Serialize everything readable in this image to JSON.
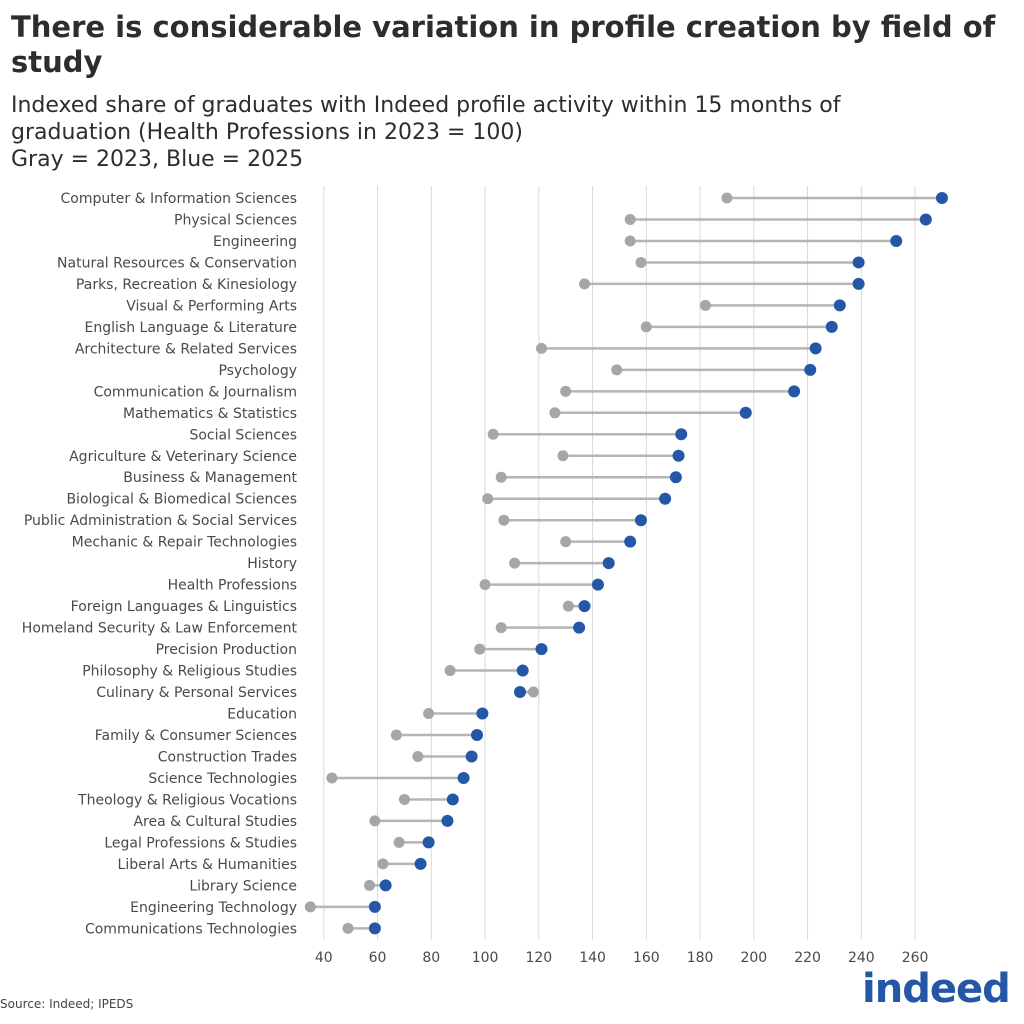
{
  "header": {
    "title": "There is considerable variation in profile creation by field of study",
    "subtitle_line1": "Indexed share of graduates with Indeed profile activity within 15 months of",
    "subtitle_line2": "graduation (Health Professions in 2023 = 100)",
    "subtitle_line3": "Gray = 2023, Blue = 2025"
  },
  "footer": {
    "source": "Source: Indeed; IPEDS",
    "logo_text": "indeed"
  },
  "colors": {
    "y2023": "#a6a6a6",
    "y2025": "#2557a7",
    "connector": "#b5b5b5",
    "grid": "#d9d9d9",
    "text": "#4a4a4a"
  },
  "chart_data": {
    "type": "dumbbell",
    "x_ticks": [
      40,
      60,
      80,
      100,
      120,
      140,
      160,
      180,
      200,
      220,
      240,
      260
    ],
    "xlim": [
      33,
      273
    ],
    "grid": true,
    "series": [
      {
        "name": "2023",
        "color": "gray"
      },
      {
        "name": "2025",
        "color": "blue"
      }
    ],
    "categories": [
      "Computer & Information Sciences",
      "Physical Sciences",
      "Engineering",
      "Natural Resources & Conservation",
      "Parks, Recreation & Kinesiology",
      "Visual & Performing Arts",
      "English Language & Literature",
      "Architecture & Related Services",
      "Psychology",
      "Communication & Journalism",
      "Mathematics & Statistics",
      "Social Sciences",
      "Agriculture & Veterinary Science",
      "Business & Management",
      "Biological & Biomedical Sciences",
      "Public Administration & Social Services",
      "Mechanic & Repair Technologies",
      "History",
      "Health Professions",
      "Foreign Languages & Linguistics",
      "Homeland Security & Law Enforcement",
      "Precision Production",
      "Philosophy & Religious Studies",
      "Culinary & Personal Services",
      "Education",
      "Family & Consumer Sciences",
      "Construction Trades",
      "Science Technologies",
      "Theology & Religious Vocations",
      "Area & Cultural Studies",
      "Legal Professions & Studies",
      "Liberal Arts & Humanities",
      "Library Science",
      "Engineering Technology",
      "Communications Technologies"
    ],
    "values_2023": [
      190,
      154,
      154,
      158,
      137,
      182,
      160,
      121,
      149,
      130,
      126,
      103,
      129,
      106,
      101,
      107,
      130,
      111,
      100,
      131,
      106,
      98,
      87,
      118,
      79,
      67,
      75,
      43,
      70,
      59,
      68,
      62,
      57,
      35,
      49
    ],
    "values_2025": [
      270,
      264,
      253,
      239,
      239,
      232,
      229,
      223,
      221,
      215,
      197,
      173,
      172,
      171,
      167,
      158,
      154,
      146,
      142,
      137,
      135,
      121,
      114,
      113,
      99,
      97,
      95,
      92,
      88,
      86,
      79,
      76,
      63,
      59,
      59
    ]
  }
}
